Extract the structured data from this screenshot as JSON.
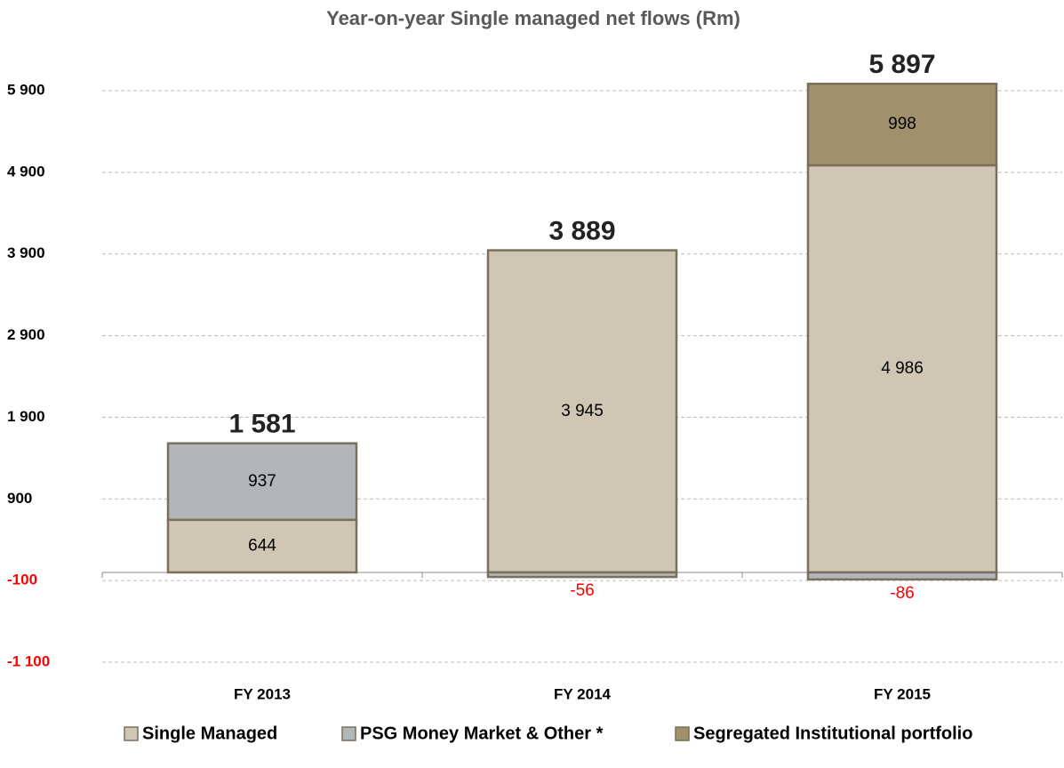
{
  "chart_data": {
    "type": "stacked_bar",
    "title": "Year-on-year Single managed net flows (Rm)",
    "categories": [
      "FY 2013",
      "FY 2014",
      "FY 2015"
    ],
    "series": [
      {
        "name": "Single Managed",
        "color": "#cfc7b4",
        "values": [
          644,
          3945,
          4986
        ],
        "value_labels": [
          "644",
          "3 945",
          "4 986"
        ]
      },
      {
        "name": "PSG Money Market & Other *",
        "color": "#b2b6b9",
        "values": [
          937,
          -56,
          -86
        ],
        "value_labels": [
          "937",
          "-56",
          "-86"
        ]
      },
      {
        "name": "Segregated Institutional portfolio",
        "color": "#a0906c",
        "values": [
          null,
          null,
          998
        ],
        "value_labels": [
          null,
          null,
          "998"
        ]
      }
    ],
    "totals": {
      "values": [
        1581,
        3889,
        5897
      ],
      "value_labels": [
        "1 581",
        "3 889",
        "5 897"
      ]
    },
    "ylim": [
      -1100,
      5900
    ],
    "yticks": [
      {
        "value": -1100,
        "label": "-1 100"
      },
      -100,
      900,
      {
        "value": 1900,
        "label": "1 900"
      },
      {
        "value": 2900,
        "label": "2 900"
      },
      {
        "value": 3900,
        "label": "3 900"
      },
      {
        "value": 4900,
        "label": "4 900"
      },
      {
        "value": 5900,
        "label": "5 900"
      }
    ],
    "grid": true,
    "legend": "bottom"
  }
}
